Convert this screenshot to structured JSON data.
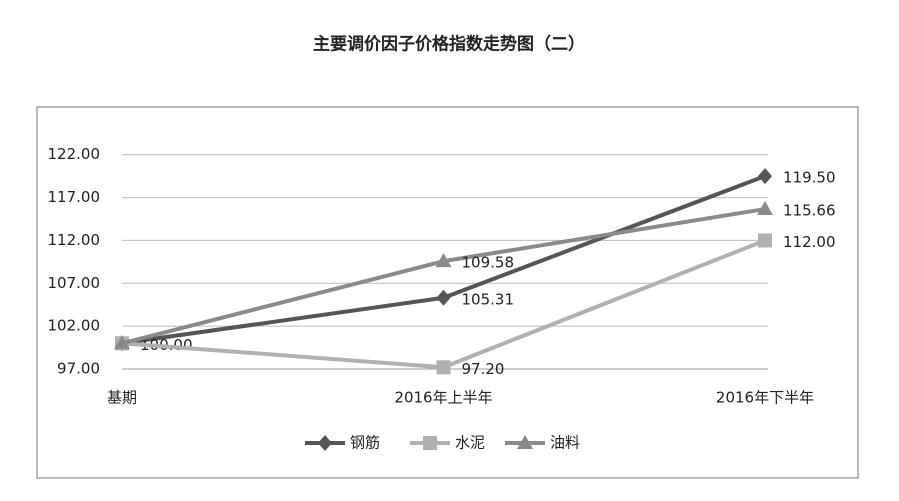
{
  "chart_data": {
    "type": "line",
    "title": "主要调价因子价格指数走势图（二）",
    "categories": [
      "基期",
      "2016年上半年",
      "2016年下半年"
    ],
    "series": [
      {
        "name": "钢筋",
        "color": "#555555",
        "marker": "diamond",
        "values": [
          100,
          105.31,
          119.5
        ],
        "value_labels": [
          "100.00",
          "105.31",
          "119.50"
        ]
      },
      {
        "name": "水泥",
        "color": "#b0b0b0",
        "marker": "square",
        "values": [
          100,
          97.2,
          112
        ],
        "value_labels": [
          null,
          "97.20",
          "112.00"
        ]
      },
      {
        "name": "油料",
        "color": "#8a8a8a",
        "marker": "triangle",
        "values": [
          100,
          109.58,
          115.66
        ],
        "value_labels": [
          null,
          "109.58",
          "115.66"
        ]
      }
    ],
    "ylim": [
      97,
      125
    ],
    "yticks": [
      {
        "value": 97,
        "label": "97.00"
      },
      {
        "value": 102,
        "label": "102.00"
      },
      {
        "value": 107,
        "label": "107.00"
      },
      {
        "value": 112,
        "label": "112.00"
      },
      {
        "value": 117,
        "label": "117.00"
      },
      {
        "value": 122,
        "label": "122.00"
      }
    ],
    "grid": true,
    "legend": "bottom"
  }
}
